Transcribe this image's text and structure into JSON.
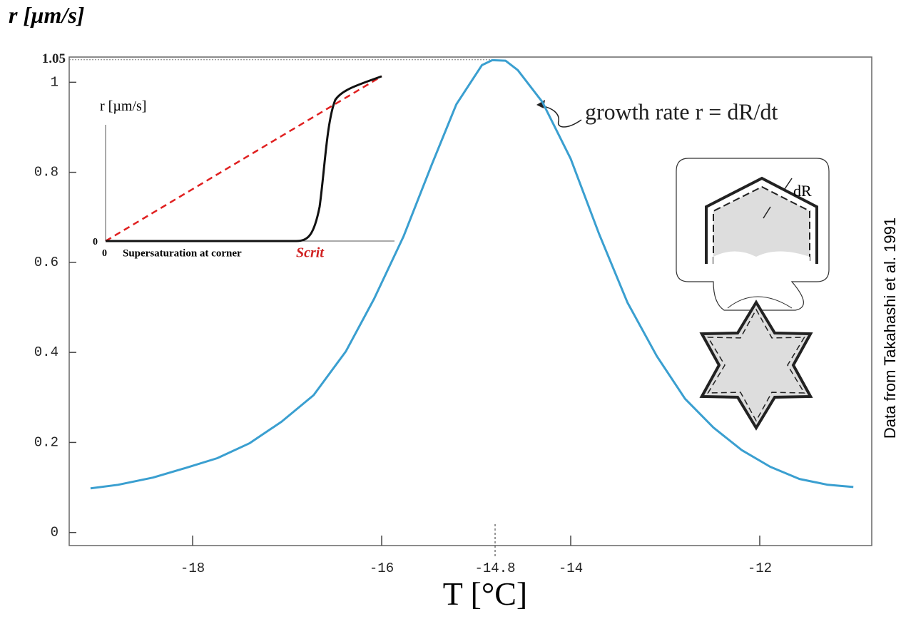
{
  "chart_data": {
    "type": "line",
    "y_label": "r [µm/s]",
    "x_label": "T [°C]",
    "annotation": "growth rate r = dR/dt",
    "source": "Data from Takahashi et al. 1991",
    "diagram_label": "dR",
    "inset": {
      "y_label": "r [µm/s]",
      "origin_y_label": "0",
      "origin_x_label": "0",
      "x_label": "Supersaturation at corner",
      "x_marker": "Scrit"
    },
    "color": "#3a9fd0",
    "x": [
      -19.08,
      -18.79,
      -18.42,
      -18.08,
      -17.74,
      -17.4,
      -17.06,
      -16.72,
      -16.38,
      -16.08,
      -15.77,
      -15.47,
      -15.21,
      -14.94,
      -14.83,
      -14.69,
      -14.56,
      -14.3,
      -14.0,
      -13.7,
      -13.4,
      -13.09,
      -12.79,
      -12.49,
      -12.19,
      -11.89,
      -11.58,
      -11.28,
      -11.01
    ],
    "values": [
      0.098,
      0.106,
      0.122,
      0.143,
      0.165,
      0.198,
      0.246,
      0.305,
      0.402,
      0.519,
      0.657,
      0.817,
      0.951,
      1.038,
      1.049,
      1.048,
      1.027,
      0.956,
      0.83,
      0.663,
      0.511,
      0.392,
      0.297,
      0.233,
      0.183,
      0.146,
      0.119,
      0.106,
      0.101
    ],
    "xlim": [
      -19.306,
      -10.815
    ],
    "ylim": [
      -0.029,
      1.056
    ],
    "xticks": [
      -18,
      -16,
      -14.8,
      -14,
      -12
    ],
    "yticks": [
      0,
      0.2,
      0.4,
      0.6,
      0.8,
      1,
      1.05
    ],
    "grid": false
  }
}
